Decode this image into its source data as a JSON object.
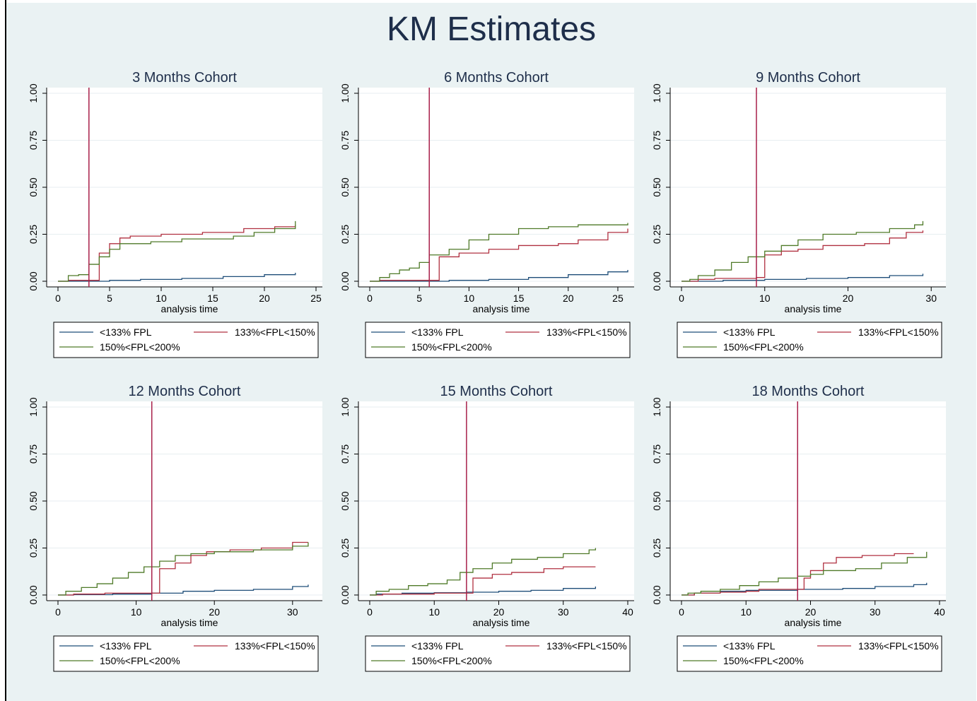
{
  "title": "KM Estimates",
  "chart_data": [
    {
      "type": "line",
      "step": true,
      "title": "3 Months Cohort",
      "xlabel": "analysis time",
      "ylabel": "",
      "xlim": [
        0,
        25
      ],
      "ylim": [
        0,
        1
      ],
      "xticks": [
        "0",
        "5",
        "10",
        "15",
        "20",
        "25"
      ],
      "yticks": [
        "0.00",
        "0.25",
        "0.50",
        "0.75",
        "1.00"
      ],
      "vline": 3,
      "legend": {
        "items": [
          "<133% FPL",
          "133%<FPL<150%",
          "150%<FPL<200%"
        ]
      },
      "series": [
        {
          "name": "<133% FPL",
          "color": "#1f4e79",
          "points": [
            [
              0,
              0
            ],
            [
              1,
              0
            ],
            [
              3,
              0
            ],
            [
              5,
              0.005
            ],
            [
              8,
              0.01
            ],
            [
              12,
              0.015
            ],
            [
              16,
              0.025
            ],
            [
              20,
              0.035
            ],
            [
              23,
              0.045
            ]
          ]
        },
        {
          "name": "133%<FPL<150%",
          "color": "#b03040",
          "points": [
            [
              0,
              0
            ],
            [
              1,
              0.005
            ],
            [
              3,
              0.005
            ],
            [
              4,
              0.15
            ],
            [
              5,
              0.2
            ],
            [
              6,
              0.23
            ],
            [
              7,
              0.24
            ],
            [
              10,
              0.25
            ],
            [
              14,
              0.26
            ],
            [
              18,
              0.28
            ],
            [
              21,
              0.29
            ],
            [
              23,
              0.3
            ]
          ]
        },
        {
          "name": "150%<FPL<200%",
          "color": "#4f7a28",
          "points": [
            [
              0,
              0
            ],
            [
              1,
              0.03
            ],
            [
              2,
              0.035
            ],
            [
              3,
              0.09
            ],
            [
              4,
              0.13
            ],
            [
              5,
              0.17
            ],
            [
              6,
              0.2
            ],
            [
              9,
              0.21
            ],
            [
              12,
              0.225
            ],
            [
              17,
              0.24
            ],
            [
              19,
              0.26
            ],
            [
              21,
              0.28
            ],
            [
              23,
              0.32
            ]
          ]
        }
      ]
    },
    {
      "type": "line",
      "step": true,
      "title": "6 Months Cohort",
      "xlabel": "analysis time",
      "ylabel": "",
      "xlim": [
        0,
        26
      ],
      "ylim": [
        0,
        1
      ],
      "xticks": [
        "0",
        "5",
        "10",
        "15",
        "20",
        "25"
      ],
      "yticks": [
        "0.00",
        "0.25",
        "0.50",
        "0.75",
        "1.00"
      ],
      "vline": 6,
      "legend": {
        "items": [
          "<133% FPL",
          "133%<FPL<150%",
          "150%<FPL<200%"
        ]
      },
      "series": [
        {
          "name": "<133% FPL",
          "color": "#1f4e79",
          "points": [
            [
              0,
              0
            ],
            [
              1,
              0
            ],
            [
              6,
              0
            ],
            [
              8,
              0.005
            ],
            [
              12,
              0.01
            ],
            [
              16,
              0.02
            ],
            [
              20,
              0.035
            ],
            [
              24,
              0.05
            ],
            [
              26,
              0.06
            ]
          ]
        },
        {
          "name": "133%<FPL<150%",
          "color": "#b03040",
          "points": [
            [
              0,
              0
            ],
            [
              1,
              0.005
            ],
            [
              6,
              0.005
            ],
            [
              7,
              0.13
            ],
            [
              9,
              0.15
            ],
            [
              12,
              0.17
            ],
            [
              15,
              0.19
            ],
            [
              19,
              0.2
            ],
            [
              21,
              0.22
            ],
            [
              24,
              0.26
            ],
            [
              26,
              0.28
            ]
          ]
        },
        {
          "name": "150%<FPL<200%",
          "color": "#4f7a28",
          "points": [
            [
              0,
              0
            ],
            [
              1,
              0.02
            ],
            [
              2,
              0.04
            ],
            [
              3,
              0.06
            ],
            [
              4,
              0.07
            ],
            [
              5,
              0.1
            ],
            [
              6,
              0.14
            ],
            [
              8,
              0.17
            ],
            [
              10,
              0.22
            ],
            [
              12,
              0.25
            ],
            [
              15,
              0.28
            ],
            [
              18,
              0.29
            ],
            [
              21,
              0.3
            ],
            [
              26,
              0.31
            ]
          ]
        }
      ]
    },
    {
      "type": "line",
      "step": true,
      "title": "9 Months Cohort",
      "xlabel": "analysis time",
      "ylabel": "",
      "xlim": [
        0,
        31
      ],
      "ylim": [
        0,
        1
      ],
      "xticks": [
        "0",
        "10",
        "20",
        "30"
      ],
      "yticks": [
        "0.00",
        "0.25",
        "0.50",
        "0.75",
        "1.00"
      ],
      "vline": 9,
      "legend": {
        "items": [
          "<133% FPL",
          "133%<FPL<150%",
          "150%<FPL<200%"
        ]
      },
      "series": [
        {
          "name": "<133% FPL",
          "color": "#1f4e79",
          "points": [
            [
              0,
              0
            ],
            [
              1,
              0
            ],
            [
              5,
              0.005
            ],
            [
              10,
              0.01
            ],
            [
              15,
              0.015
            ],
            [
              20,
              0.02
            ],
            [
              25,
              0.03
            ],
            [
              29,
              0.04
            ]
          ]
        },
        {
          "name": "133%<FPL<150%",
          "color": "#b03040",
          "points": [
            [
              0,
              0
            ],
            [
              2,
              0.01
            ],
            [
              4,
              0.015
            ],
            [
              9,
              0.02
            ],
            [
              10,
              0.14
            ],
            [
              12,
              0.16
            ],
            [
              14,
              0.17
            ],
            [
              17,
              0.19
            ],
            [
              22,
              0.2
            ],
            [
              25,
              0.23
            ],
            [
              27,
              0.26
            ],
            [
              29,
              0.27
            ]
          ]
        },
        {
          "name": "150%<FPL<200%",
          "color": "#4f7a28",
          "points": [
            [
              0,
              0
            ],
            [
              1,
              0.01
            ],
            [
              2,
              0.03
            ],
            [
              4,
              0.06
            ],
            [
              6,
              0.1
            ],
            [
              8,
              0.13
            ],
            [
              10,
              0.16
            ],
            [
              12,
              0.19
            ],
            [
              14,
              0.22
            ],
            [
              17,
              0.25
            ],
            [
              21,
              0.26
            ],
            [
              25,
              0.28
            ],
            [
              28,
              0.3
            ],
            [
              29,
              0.32
            ]
          ]
        }
      ]
    },
    {
      "type": "line",
      "step": true,
      "title": "12 Months Cohort",
      "xlabel": "analysis time",
      "ylabel": "",
      "xlim": [
        0,
        33
      ],
      "ylim": [
        0,
        1
      ],
      "xticks": [
        "0",
        "10",
        "20",
        "30"
      ],
      "yticks": [
        "0.00",
        "0.25",
        "0.50",
        "0.75",
        "1.00"
      ],
      "vline": 12,
      "legend": {
        "items": [
          "<133% FPL",
          "133%<FPL<150%",
          "150%<FPL<200%"
        ]
      },
      "series": [
        {
          "name": "<133% FPL",
          "color": "#1f4e79",
          "points": [
            [
              0,
              0
            ],
            [
              2,
              0.002
            ],
            [
              7,
              0.005
            ],
            [
              12,
              0.01
            ],
            [
              16,
              0.02
            ],
            [
              20,
              0.025
            ],
            [
              25,
              0.03
            ],
            [
              30,
              0.045
            ],
            [
              32,
              0.055
            ]
          ]
        },
        {
          "name": "133%<FPL<150%",
          "color": "#b03040",
          "points": [
            [
              0,
              0
            ],
            [
              2,
              0.005
            ],
            [
              6,
              0.01
            ],
            [
              13,
              0.01
            ],
            [
              13,
              0.14
            ],
            [
              15,
              0.17
            ],
            [
              17,
              0.21
            ],
            [
              19,
              0.23
            ],
            [
              22,
              0.24
            ],
            [
              26,
              0.25
            ],
            [
              30,
              0.28
            ],
            [
              32,
              0.28
            ]
          ]
        },
        {
          "name": "150%<FPL<200%",
          "color": "#4f7a28",
          "points": [
            [
              0,
              0
            ],
            [
              1,
              0.02
            ],
            [
              3,
              0.04
            ],
            [
              5,
              0.06
            ],
            [
              7,
              0.09
            ],
            [
              9,
              0.12
            ],
            [
              11,
              0.15
            ],
            [
              13,
              0.18
            ],
            [
              15,
              0.21
            ],
            [
              17,
              0.22
            ],
            [
              20,
              0.23
            ],
            [
              25,
              0.24
            ],
            [
              30,
              0.26
            ],
            [
              32,
              0.28
            ]
          ]
        }
      ]
    },
    {
      "type": "line",
      "step": true,
      "title": "15 Months Cohort",
      "xlabel": "analysis time",
      "ylabel": "",
      "xlim": [
        0,
        40
      ],
      "ylim": [
        0,
        1
      ],
      "xticks": [
        "0",
        "10",
        "20",
        "30",
        "40"
      ],
      "yticks": [
        "0.00",
        "0.25",
        "0.50",
        "0.75",
        "1.00"
      ],
      "vline": 15,
      "legend": {
        "items": [
          "<133% FPL",
          "133%<FPL<150%",
          "150%<FPL<200%"
        ]
      },
      "series": [
        {
          "name": "<133% FPL",
          "color": "#1f4e79",
          "points": [
            [
              0,
              0
            ],
            [
              1,
              0.005
            ],
            [
              5,
              0.01
            ],
            [
              10,
              0.012
            ],
            [
              15,
              0.015
            ],
            [
              20,
              0.02
            ],
            [
              25,
              0.025
            ],
            [
              30,
              0.035
            ],
            [
              35,
              0.045
            ]
          ]
        },
        {
          "name": "133%<FPL<150%",
          "color": "#b03040",
          "points": [
            [
              0,
              0
            ],
            [
              2,
              0.005
            ],
            [
              10,
              0.01
            ],
            [
              16,
              0.01
            ],
            [
              16,
              0.09
            ],
            [
              19,
              0.11
            ],
            [
              22,
              0.12
            ],
            [
              27,
              0.14
            ],
            [
              30,
              0.15
            ],
            [
              35,
              0.15
            ]
          ]
        },
        {
          "name": "150%<FPL<200%",
          "color": "#4f7a28",
          "points": [
            [
              0,
              0
            ],
            [
              1,
              0.02
            ],
            [
              3,
              0.03
            ],
            [
              6,
              0.05
            ],
            [
              9,
              0.06
            ],
            [
              12,
              0.08
            ],
            [
              14,
              0.12
            ],
            [
              16,
              0.14
            ],
            [
              19,
              0.17
            ],
            [
              22,
              0.19
            ],
            [
              26,
              0.2
            ],
            [
              30,
              0.22
            ],
            [
              34,
              0.24
            ],
            [
              35,
              0.25
            ]
          ]
        }
      ]
    },
    {
      "type": "line",
      "step": true,
      "title": "18 Months Cohort",
      "xlabel": "analysis time",
      "ylabel": "",
      "xlim": [
        0,
        40
      ],
      "ylim": [
        0,
        1
      ],
      "xticks": [
        "0",
        "10",
        "20",
        "30",
        "40"
      ],
      "yticks": [
        "0.00",
        "0.25",
        "0.50",
        "0.75",
        "1.00"
      ],
      "vline": 18,
      "legend": {
        "items": [
          "<133% FPL",
          "133%<FPL<150%",
          "150%<FPL<200%"
        ]
      },
      "series": [
        {
          "name": "<133% FPL",
          "color": "#1f4e79",
          "points": [
            [
              0,
              0
            ],
            [
              2,
              0.01
            ],
            [
              6,
              0.02
            ],
            [
              10,
              0.025
            ],
            [
              18,
              0.03
            ],
            [
              25,
              0.035
            ],
            [
              30,
              0.045
            ],
            [
              36,
              0.055
            ],
            [
              38,
              0.065
            ]
          ]
        },
        {
          "name": "133%<FPL<150%",
          "color": "#b03040",
          "points": [
            [
              0,
              0
            ],
            [
              2,
              0.01
            ],
            [
              6,
              0.015
            ],
            [
              10,
              0.02
            ],
            [
              12,
              0.03
            ],
            [
              18,
              0.03
            ],
            [
              19,
              0.09
            ],
            [
              20,
              0.13
            ],
            [
              22,
              0.17
            ],
            [
              24,
              0.2
            ],
            [
              28,
              0.21
            ],
            [
              33,
              0.22
            ],
            [
              36,
              0.22
            ]
          ]
        },
        {
          "name": "150%<FPL<200%",
          "color": "#4f7a28",
          "points": [
            [
              0,
              0
            ],
            [
              1,
              0.01
            ],
            [
              3,
              0.02
            ],
            [
              6,
              0.03
            ],
            [
              9,
              0.05
            ],
            [
              12,
              0.07
            ],
            [
              15,
              0.09
            ],
            [
              18,
              0.1
            ],
            [
              20,
              0.11
            ],
            [
              22,
              0.13
            ],
            [
              27,
              0.14
            ],
            [
              31,
              0.17
            ],
            [
              35,
              0.2
            ],
            [
              38,
              0.23
            ]
          ]
        }
      ]
    }
  ]
}
